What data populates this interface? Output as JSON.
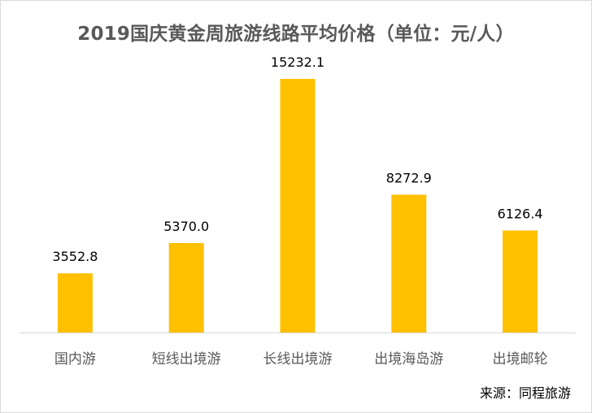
{
  "title": "2019国庆黄金周旅游线路平均价格（单位：元/人）",
  "source": "来源：同程旅游",
  "chart_data": {
    "type": "bar",
    "title": "2019国庆黄金周旅游线路平均价格（单位：元/人）",
    "categories": [
      "国内游",
      "短线出境游",
      "长线出境游",
      "出境海岛游",
      "出境邮轮"
    ],
    "values": [
      3552.8,
      5370.0,
      15232.1,
      8272.9,
      6126.4
    ],
    "value_labels": [
      "3552.8",
      "5370.0",
      "15232.1",
      "8272.9",
      "6126.4"
    ],
    "ylim": [
      0,
      15232.1
    ],
    "grid": false,
    "legend": "none",
    "bar_color": "#ffc000",
    "axis_color": "#d9d9d9"
  }
}
